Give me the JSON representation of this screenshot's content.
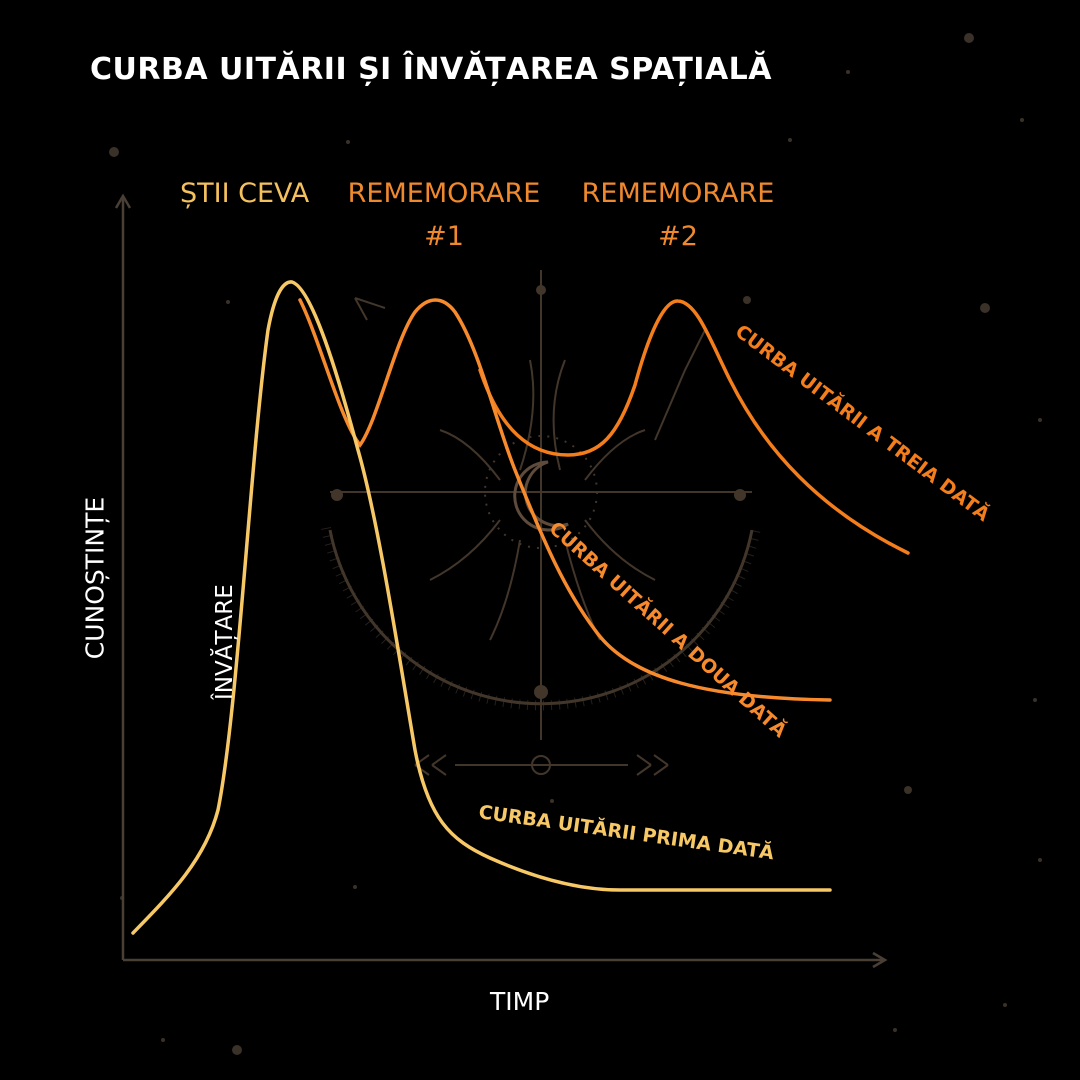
{
  "title": "CURBA UITĂRII ȘI ÎNVĂȚAREA SPAȚIALĂ",
  "colors": {
    "background": "#000000",
    "axis": "#4a3f35",
    "learning": "#f7c866",
    "first_forgetting": "#f7c866",
    "second_forgetting": "#f78a2c",
    "third_forgetting": "#f47d1c",
    "peak_label_1": "#f5c15e",
    "peak_label_2": "#f0892e",
    "decoration": "#5a4a3c"
  },
  "peak_labels": {
    "know": "ȘTII CEVA",
    "recall_1_line1": "REMEMORARE",
    "recall_1_line2": "#1",
    "recall_2_line1": "REMEMORARE",
    "recall_2_line2": "#2"
  },
  "chart_data": {
    "type": "line",
    "title": "CURBA UITĂRII ȘI ÎNVĂȚAREA SPAȚIALĂ",
    "xlabel": "TIMP",
    "ylabel": "CUNOȘTINȚE",
    "x_ticks": [],
    "y_ticks": [],
    "grid": false,
    "series": [
      {
        "name": "ÎNVĂȚARE",
        "color": "#f7c866"
      },
      {
        "name": "CURBA UITĂRII PRIMA DATĂ",
        "color": "#f7c866"
      },
      {
        "name": "CURBA UITĂRII A DOUA DATĂ",
        "color": "#f78a2c"
      },
      {
        "name": "CURBA UITĂRII A TREIA DATĂ",
        "color": "#f47d1c"
      }
    ],
    "annotations": [
      "ȘTII CEVA",
      "REMEMORARE #1",
      "REMEMORARE #2"
    ]
  }
}
